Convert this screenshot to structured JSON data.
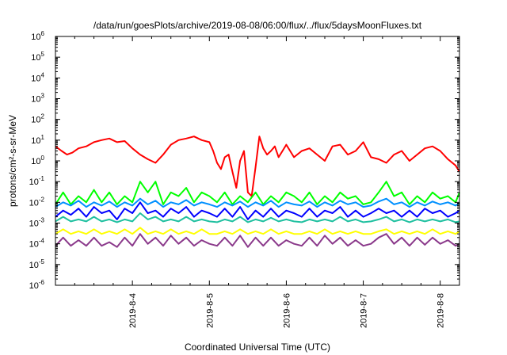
{
  "chart_data": {
    "type": "line",
    "title": "/data/run/goesPlots/archive/2019-08-08/06:00/flux/../flux/5daysMoonFluxes.txt",
    "xlabel": "Coordinated Universal Time (UTC)",
    "ylabel": "protons/cm²-s-sr-MeV",
    "yscale": "log",
    "ylim_exponents": [
      -6,
      6
    ],
    "xlim_days": [
      3.0,
      8.25
    ],
    "x_ticks": [
      {
        "day": 4,
        "label": "2019-8-4"
      },
      {
        "day": 5,
        "label": "2019-8-5"
      },
      {
        "day": 6,
        "label": "2019-8-6"
      },
      {
        "day": 7,
        "label": "2019-8-7"
      },
      {
        "day": 8,
        "label": "2019-8-8"
      }
    ],
    "y_ticks": [
      {
        "exp": -6,
        "base": "10",
        "sup": "-6"
      },
      {
        "exp": -5,
        "base": "10",
        "sup": "-5"
      },
      {
        "exp": -4,
        "base": "10",
        "sup": "-4"
      },
      {
        "exp": -3,
        "base": "10",
        "sup": "-3"
      },
      {
        "exp": -2,
        "base": "10",
        "sup": "-2"
      },
      {
        "exp": -1,
        "base": "10",
        "sup": "-1"
      },
      {
        "exp": 0,
        "base": "10",
        "sup": "0"
      },
      {
        "exp": 1,
        "base": "10",
        "sup": "1"
      },
      {
        "exp": 2,
        "base": "10",
        "sup": "2"
      },
      {
        "exp": 3,
        "base": "10",
        "sup": "3"
      },
      {
        "exp": 4,
        "base": "10",
        "sup": "4"
      },
      {
        "exp": 5,
        "base": "10",
        "sup": "5"
      },
      {
        "exp": 6,
        "base": "10",
        "sup": "6"
      }
    ],
    "grid": false,
    "legend": "none",
    "series": [
      {
        "color": "#ff0000",
        "x": [
          3.0,
          3.08,
          3.15,
          3.22,
          3.3,
          3.4,
          3.5,
          3.6,
          3.7,
          3.8,
          3.9,
          4.0,
          4.1,
          4.2,
          4.3,
          4.4,
          4.5,
          4.6,
          4.7,
          4.8,
          4.9,
          5.0,
          5.05,
          5.1,
          5.15,
          5.2,
          5.25,
          5.3,
          5.35,
          5.4,
          5.45,
          5.5,
          5.55,
          5.6,
          5.65,
          5.7,
          5.75,
          5.8,
          5.85,
          5.9,
          5.95,
          6.0,
          6.1,
          6.2,
          6.3,
          6.4,
          6.5,
          6.6,
          6.7,
          6.8,
          6.9,
          7.0,
          7.1,
          7.2,
          7.3,
          7.4,
          7.5,
          7.6,
          7.7,
          7.8,
          7.9,
          8.0,
          8.1,
          8.2,
          8.25
        ],
        "y": [
          5,
          3,
          2,
          2.5,
          4,
          5,
          8,
          10,
          12,
          8,
          9,
          4,
          2,
          1.2,
          0.8,
          2,
          6,
          10,
          12,
          15,
          10,
          8,
          3,
          0.8,
          0.4,
          1.5,
          2,
          0.3,
          0.05,
          1,
          3,
          0.03,
          0.02,
          0.5,
          15,
          4,
          2,
          3,
          5,
          1.5,
          3,
          6,
          1.5,
          3,
          4,
          2,
          1,
          5,
          6,
          2,
          3,
          8,
          1.5,
          1.2,
          0.8,
          2,
          3,
          1,
          2,
          4,
          5,
          3,
          1.2,
          0.6,
          0.3
        ]
      },
      {
        "color": "#00ff00",
        "x": [
          3.0,
          3.1,
          3.2,
          3.3,
          3.4,
          3.5,
          3.6,
          3.7,
          3.8,
          3.9,
          4.0,
          4.1,
          4.2,
          4.3,
          4.4,
          4.5,
          4.6,
          4.7,
          4.8,
          4.9,
          5.0,
          5.1,
          5.2,
          5.3,
          5.4,
          5.5,
          5.6,
          5.7,
          5.8,
          5.9,
          6.0,
          6.1,
          6.2,
          6.3,
          6.4,
          6.5,
          6.6,
          6.7,
          6.8,
          6.9,
          7.0,
          7.1,
          7.2,
          7.3,
          7.4,
          7.5,
          7.6,
          7.7,
          7.8,
          7.9,
          8.0,
          8.1,
          8.2,
          8.25
        ],
        "y": [
          0.008,
          0.03,
          0.008,
          0.02,
          0.01,
          0.04,
          0.01,
          0.03,
          0.008,
          0.02,
          0.01,
          0.1,
          0.03,
          0.1,
          0.008,
          0.03,
          0.02,
          0.05,
          0.01,
          0.03,
          0.02,
          0.01,
          0.03,
          0.008,
          0.02,
          0.01,
          0.03,
          0.008,
          0.02,
          0.01,
          0.03,
          0.02,
          0.01,
          0.03,
          0.008,
          0.02,
          0.01,
          0.03,
          0.015,
          0.02,
          0.008,
          0.01,
          0.03,
          0.1,
          0.02,
          0.03,
          0.008,
          0.02,
          0.01,
          0.03,
          0.015,
          0.02,
          0.01,
          0.03
        ]
      },
      {
        "color": "#0090ff",
        "x": [
          3.0,
          3.1,
          3.2,
          3.3,
          3.4,
          3.5,
          3.6,
          3.7,
          3.8,
          3.9,
          4.0,
          4.1,
          4.2,
          4.3,
          4.4,
          4.5,
          4.6,
          4.7,
          4.8,
          4.9,
          5.0,
          5.1,
          5.2,
          5.3,
          5.4,
          5.5,
          5.6,
          5.7,
          5.8,
          5.9,
          6.0,
          6.1,
          6.2,
          6.3,
          6.4,
          6.5,
          6.6,
          6.7,
          6.8,
          6.9,
          7.0,
          7.1,
          7.2,
          7.3,
          7.4,
          7.5,
          7.6,
          7.7,
          7.8,
          7.9,
          8.0,
          8.1,
          8.2,
          8.25
        ],
        "y": [
          0.006,
          0.01,
          0.007,
          0.012,
          0.006,
          0.01,
          0.007,
          0.011,
          0.006,
          0.01,
          0.007,
          0.015,
          0.008,
          0.012,
          0.006,
          0.01,
          0.008,
          0.013,
          0.007,
          0.01,
          0.008,
          0.006,
          0.01,
          0.007,
          0.011,
          0.006,
          0.01,
          0.007,
          0.012,
          0.006,
          0.01,
          0.008,
          0.007,
          0.011,
          0.006,
          0.01,
          0.007,
          0.012,
          0.008,
          0.01,
          0.006,
          0.007,
          0.011,
          0.015,
          0.008,
          0.01,
          0.006,
          0.01,
          0.007,
          0.011,
          0.008,
          0.01,
          0.007,
          0.009
        ]
      },
      {
        "color": "#0000ff",
        "x": [
          3.0,
          3.1,
          3.2,
          3.3,
          3.4,
          3.5,
          3.6,
          3.7,
          3.8,
          3.9,
          4.0,
          4.1,
          4.2,
          4.3,
          4.4,
          4.5,
          4.6,
          4.7,
          4.8,
          4.9,
          5.0,
          5.1,
          5.2,
          5.3,
          5.4,
          5.5,
          5.6,
          5.7,
          5.8,
          5.9,
          6.0,
          6.1,
          6.2,
          6.3,
          6.4,
          6.5,
          6.6,
          6.7,
          6.8,
          6.9,
          7.0,
          7.1,
          7.2,
          7.3,
          7.4,
          7.5,
          7.6,
          7.7,
          7.8,
          7.9,
          8.0,
          8.1,
          8.2,
          8.25
        ],
        "y": [
          0.002,
          0.004,
          0.0025,
          0.005,
          0.002,
          0.006,
          0.003,
          0.004,
          0.0015,
          0.005,
          0.003,
          0.01,
          0.003,
          0.004,
          0.002,
          0.005,
          0.003,
          0.006,
          0.002,
          0.004,
          0.003,
          0.002,
          0.005,
          0.002,
          0.006,
          0.0015,
          0.004,
          0.002,
          0.005,
          0.002,
          0.004,
          0.003,
          0.002,
          0.005,
          0.002,
          0.004,
          0.003,
          0.006,
          0.002,
          0.004,
          0.002,
          0.003,
          0.005,
          0.003,
          0.004,
          0.002,
          0.004,
          0.002,
          0.005,
          0.003,
          0.004,
          0.002,
          0.003,
          0.004
        ]
      },
      {
        "color": "#20c0a0",
        "x": [
          3.0,
          3.1,
          3.2,
          3.3,
          3.4,
          3.5,
          3.6,
          3.7,
          3.8,
          3.9,
          4.0,
          4.1,
          4.2,
          4.3,
          4.4,
          4.5,
          4.6,
          4.7,
          4.8,
          4.9,
          5.0,
          5.1,
          5.2,
          5.3,
          5.4,
          5.5,
          5.6,
          5.7,
          5.8,
          5.9,
          6.0,
          6.1,
          6.2,
          6.3,
          6.4,
          6.5,
          6.6,
          6.7,
          6.8,
          6.9,
          7.0,
          7.1,
          7.2,
          7.3,
          7.4,
          7.5,
          7.6,
          7.7,
          7.8,
          7.9,
          8.0,
          8.1,
          8.2,
          8.25
        ],
        "y": [
          0.0012,
          0.002,
          0.0012,
          0.0015,
          0.0012,
          0.002,
          0.0012,
          0.0015,
          0.0011,
          0.0015,
          0.0012,
          0.003,
          0.0015,
          0.002,
          0.0012,
          0.0015,
          0.0012,
          0.002,
          0.0012,
          0.0015,
          0.0012,
          0.0011,
          0.0015,
          0.0012,
          0.002,
          0.0011,
          0.0015,
          0.0012,
          0.0018,
          0.0012,
          0.0015,
          0.0012,
          0.0011,
          0.0015,
          0.0012,
          0.0015,
          0.0012,
          0.002,
          0.0012,
          0.0015,
          0.0011,
          0.0012,
          0.0015,
          0.002,
          0.0012,
          0.0015,
          0.0011,
          0.0015,
          0.0012,
          0.0015,
          0.0012,
          0.0015,
          0.0011,
          0.0012
        ]
      },
      {
        "color": "#ffff00",
        "x": [
          3.0,
          3.1,
          3.2,
          3.3,
          3.4,
          3.5,
          3.6,
          3.7,
          3.8,
          3.9,
          4.0,
          4.1,
          4.2,
          4.3,
          4.4,
          4.5,
          4.6,
          4.7,
          4.8,
          4.9,
          5.0,
          5.1,
          5.2,
          5.3,
          5.4,
          5.5,
          5.6,
          5.7,
          5.8,
          5.9,
          6.0,
          6.1,
          6.2,
          6.3,
          6.4,
          6.5,
          6.6,
          6.7,
          6.8,
          6.9,
          7.0,
          7.1,
          7.2,
          7.3,
          7.4,
          7.5,
          7.6,
          7.7,
          7.8,
          7.9,
          8.0,
          8.1,
          8.2,
          8.25
        ],
        "y": [
          0.0003,
          0.0005,
          0.0003,
          0.0004,
          0.0003,
          0.0005,
          0.0003,
          0.0004,
          0.0003,
          0.0005,
          0.0003,
          0.0006,
          0.0003,
          0.0004,
          0.0003,
          0.0005,
          0.0003,
          0.0004,
          0.0003,
          0.0005,
          0.0003,
          0.0003,
          0.0004,
          0.0003,
          0.0005,
          0.0003,
          0.0004,
          0.0003,
          0.0005,
          0.0003,
          0.0004,
          0.0003,
          0.0003,
          0.0004,
          0.0003,
          0.0005,
          0.0003,
          0.0004,
          0.0003,
          0.0004,
          0.0003,
          0.0003,
          0.0004,
          0.0005,
          0.0003,
          0.0004,
          0.0003,
          0.0004,
          0.0003,
          0.0005,
          0.0003,
          0.0004,
          0.0003,
          0.0004
        ]
      },
      {
        "color": "#8b3a8b",
        "x": [
          3.0,
          3.1,
          3.2,
          3.3,
          3.4,
          3.5,
          3.6,
          3.7,
          3.8,
          3.9,
          4.0,
          4.1,
          4.2,
          4.3,
          4.4,
          4.5,
          4.6,
          4.7,
          4.8,
          4.9,
          5.0,
          5.1,
          5.2,
          5.3,
          5.4,
          5.5,
          5.6,
          5.7,
          5.8,
          5.9,
          6.0,
          6.1,
          6.2,
          6.3,
          6.4,
          6.5,
          6.6,
          6.7,
          6.8,
          6.9,
          7.0,
          7.1,
          7.2,
          7.3,
          7.4,
          7.5,
          7.6,
          7.7,
          7.8,
          7.9,
          8.0,
          8.1,
          8.2,
          8.25
        ],
        "y": [
          8e-05,
          0.0002,
          8e-05,
          0.00015,
          8e-05,
          0.0002,
          8e-05,
          0.00012,
          7e-05,
          0.0002,
          8e-05,
          0.0003,
          0.0001,
          0.0002,
          8e-05,
          0.00025,
          0.0001,
          0.0002,
          8e-05,
          0.00015,
          0.0001,
          8e-05,
          0.0002,
          8e-05,
          0.00025,
          7e-05,
          0.0002,
          8e-05,
          0.0002,
          8e-05,
          0.00015,
          0.0001,
          8e-05,
          0.0002,
          8e-05,
          0.00025,
          0.0001,
          0.0002,
          8e-05,
          0.00015,
          8e-05,
          0.0001,
          0.0002,
          0.0003,
          0.0001,
          0.0002,
          8e-05,
          0.0002,
          9e-05,
          0.0002,
          0.0001,
          0.00015,
          8e-05,
          0.0001
        ]
      }
    ]
  }
}
